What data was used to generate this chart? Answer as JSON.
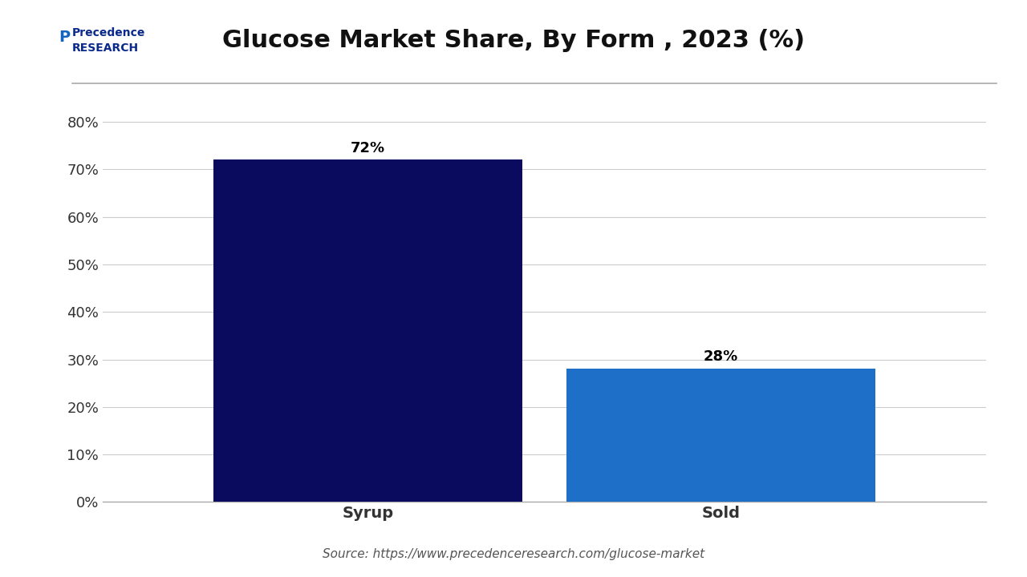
{
  "title": "Glucose Market Share, By Form , 2023 (%)",
  "categories": [
    "Syrup",
    "Sold"
  ],
  "values": [
    72,
    28
  ],
  "bar_colors": [
    "#0a0a5e",
    "#1e6fc7"
  ],
  "label_annotations": [
    "72%",
    "28%"
  ],
  "yticks": [
    0,
    10,
    20,
    30,
    40,
    50,
    60,
    70,
    80
  ],
  "ytick_labels": [
    "0%",
    "10%",
    "20%",
    "30%",
    "40%",
    "50%",
    "60%",
    "70%",
    "80%"
  ],
  "ylim": [
    0,
    85
  ],
  "source_text": "Source: https://www.precedenceresearch.com/glucose-market",
  "background_color": "#ffffff",
  "grid_color": "#cccccc",
  "bar_width": 0.35,
  "title_fontsize": 22,
  "label_fontsize": 14,
  "tick_fontsize": 13,
  "source_fontsize": 11,
  "annotation_fontsize": 13
}
